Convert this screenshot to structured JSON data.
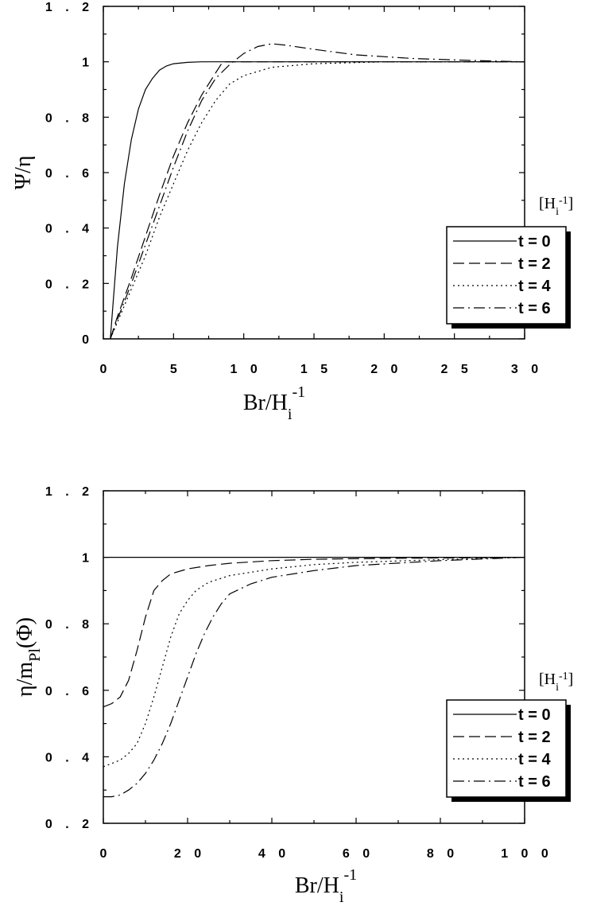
{
  "chart_data": [
    {
      "type": "line",
      "ylabel": "Ψ/η",
      "xlabel_main": "Br/H",
      "xlabel_sub": "i",
      "xlabel_sup": "-1",
      "unit_main": "[H",
      "unit_sub": "i",
      "unit_sup": "-1",
      "unit_close": "]",
      "xlim": [
        0,
        30
      ],
      "ylim": [
        0,
        1.2
      ],
      "xticks": [
        0,
        5,
        10,
        15,
        20,
        25,
        30
      ],
      "xtick_labels": [
        "0",
        "5",
        "1 0",
        "1 5",
        "2 0",
        "2 5",
        "3 0"
      ],
      "yticks": [
        0,
        0.2,
        0.4,
        0.6,
        0.8,
        1,
        1.2
      ],
      "ytick_labels": [
        "0",
        "0 . 2",
        "0 . 4",
        "0 . 6",
        "0 . 8",
        "1",
        "1 . 2"
      ],
      "legend_position": "lower-right",
      "series": [
        {
          "name": "t = 0",
          "dash": "solid",
          "x": [
            0.5,
            1,
            1.5,
            2,
            2.5,
            3,
            3.5,
            4,
            4.5,
            5,
            6,
            7,
            8,
            10,
            15,
            20,
            30
          ],
          "y": [
            0,
            0.33,
            0.56,
            0.72,
            0.83,
            0.9,
            0.94,
            0.97,
            0.985,
            0.993,
            0.998,
            1.0,
            1.0,
            1.0,
            1.0,
            1.0,
            1.0
          ]
        },
        {
          "name": "t = 2",
          "dash": "dashed",
          "x": [
            0.5,
            1,
            2,
            3,
            4,
            5,
            6,
            7,
            8,
            8.5,
            10,
            15,
            20,
            30
          ],
          "y": [
            0,
            0.08,
            0.22,
            0.37,
            0.52,
            0.66,
            0.78,
            0.88,
            0.96,
            1.0,
            1.0,
            1.0,
            1.0,
            1.0
          ]
        },
        {
          "name": "t = 4",
          "dash": "dotted",
          "x": [
            0.5,
            1,
            2,
            3,
            4,
            5,
            6,
            7,
            8,
            9,
            10,
            12,
            15,
            20,
            25,
            30
          ],
          "y": [
            0,
            0.06,
            0.18,
            0.3,
            0.44,
            0.56,
            0.68,
            0.78,
            0.86,
            0.92,
            0.95,
            0.98,
            0.993,
            1.0,
            1.0,
            1.0
          ]
        },
        {
          "name": "t = 6",
          "dash": "dashdot",
          "x": [
            0.5,
            1,
            2,
            3,
            4,
            5,
            6,
            7,
            8,
            9,
            10,
            11,
            12,
            13,
            15,
            18,
            22,
            26,
            30
          ],
          "y": [
            0,
            0.07,
            0.2,
            0.34,
            0.48,
            0.62,
            0.75,
            0.86,
            0.94,
            0.99,
            1.03,
            1.055,
            1.065,
            1.06,
            1.045,
            1.025,
            1.012,
            1.005,
            1.0
          ]
        }
      ]
    },
    {
      "type": "line",
      "ylabel_main": "η/m",
      "ylabel_sub": "Pl",
      "ylabel_tail": "(Φ)",
      "xlabel_main": "Br/H",
      "xlabel_sub": "i",
      "xlabel_sup": "-1",
      "unit_main": "[H",
      "unit_sub": "i",
      "unit_sup": "-1",
      "unit_close": "]",
      "xlim": [
        0,
        100
      ],
      "ylim": [
        0.2,
        1.2
      ],
      "xticks": [
        0,
        20,
        40,
        60,
        80,
        100
      ],
      "xtick_labels": [
        "0",
        "2 0",
        "4 0",
        "6 0",
        "8 0",
        "1 0 0"
      ],
      "yticks": [
        0.2,
        0.4,
        0.6,
        0.8,
        1,
        1.2
      ],
      "ytick_labels": [
        "0 . 2",
        "0 . 4",
        "0 . 6",
        "0 . 8",
        "1",
        "1 . 2"
      ],
      "legend_position": "lower-right",
      "series": [
        {
          "name": "t = 0",
          "dash": "solid",
          "x": [
            0,
            20,
            40,
            60,
            80,
            100
          ],
          "y": [
            1.0,
            1.0,
            1.0,
            1.0,
            1.0,
            1.0
          ]
        },
        {
          "name": "t = 2",
          "dash": "dashed",
          "x": [
            0,
            2,
            4,
            6,
            8,
            10,
            12,
            14,
            16,
            20,
            25,
            30,
            40,
            50,
            60,
            80,
            100
          ],
          "y": [
            0.55,
            0.56,
            0.58,
            0.63,
            0.72,
            0.82,
            0.9,
            0.93,
            0.95,
            0.965,
            0.975,
            0.982,
            0.99,
            0.994,
            0.996,
            0.998,
            1.0
          ]
        },
        {
          "name": "t = 4",
          "dash": "dotted",
          "x": [
            0,
            2,
            4,
            6,
            8,
            10,
            12,
            14,
            16,
            18,
            20,
            22,
            25,
            30,
            40,
            50,
            60,
            80,
            100
          ],
          "y": [
            0.37,
            0.38,
            0.39,
            0.41,
            0.44,
            0.5,
            0.58,
            0.67,
            0.76,
            0.83,
            0.87,
            0.9,
            0.925,
            0.945,
            0.965,
            0.978,
            0.985,
            0.993,
            1.0
          ]
        },
        {
          "name": "t = 6",
          "dash": "dashdot",
          "x": [
            0,
            2,
            4,
            6,
            8,
            10,
            12,
            14,
            16,
            18,
            20,
            22,
            24,
            26,
            28,
            30,
            35,
            40,
            50,
            60,
            80,
            100
          ],
          "y": [
            0.28,
            0.28,
            0.285,
            0.3,
            0.32,
            0.35,
            0.39,
            0.44,
            0.5,
            0.57,
            0.64,
            0.71,
            0.77,
            0.82,
            0.86,
            0.89,
            0.92,
            0.94,
            0.96,
            0.975,
            0.99,
            1.0
          ]
        }
      ]
    }
  ]
}
